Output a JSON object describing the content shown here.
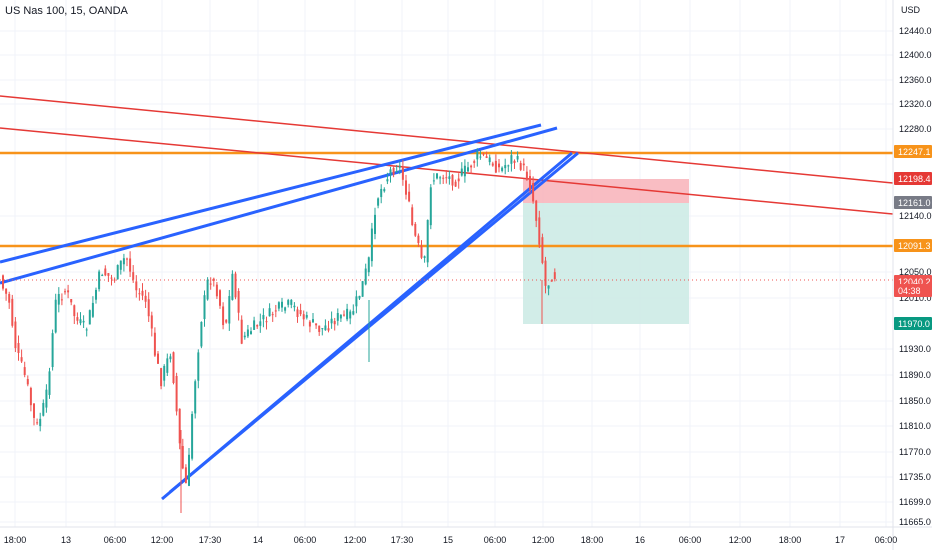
{
  "header": {
    "title": "US Nas 100, 15, OANDA"
  },
  "colors": {
    "up": "#26a69a",
    "down": "#ef5350",
    "resistance": "#f7931a",
    "trendline_red": "#e53935",
    "channel_blue": "#2962ff",
    "stop_zone": "#f8b2b8",
    "target_zone": "#cdebe6",
    "grid": "#f0f3fa"
  },
  "chart_data": {
    "type": "candlestick",
    "currency_label": "USD",
    "y_ticks": [
      "12440.0",
      "12400.0",
      "12360.0",
      "12320.0",
      "12280.0",
      "12140.0",
      "12050.0",
      "12010.0",
      "11930.0",
      "11890.0",
      "11850.0",
      "11810.0",
      "11770.0",
      "11735.0",
      "11699.0",
      "11665.0"
    ],
    "x_ticks": [
      "18:00",
      "13",
      "06:00",
      "12:00",
      "17:30",
      "14",
      "06:00",
      "12:00",
      "17:30",
      "15",
      "06:00",
      "12:00",
      "18:00",
      "16",
      "06:00",
      "12:00",
      "18:00",
      "17",
      "06:00"
    ],
    "price_badges": [
      {
        "label": "12247.1",
        "color": "#f7931a"
      },
      {
        "label": "12198.4",
        "color": "#e53935"
      },
      {
        "label": "12161.0",
        "color": "#787b86"
      },
      {
        "label": "12091.3",
        "color": "#f7931a"
      },
      {
        "label": "12040.2",
        "color": "#ef5350"
      },
      {
        "label": "04:38",
        "color": "#ef5350"
      },
      {
        "label": "11970.0",
        "color": "#089981"
      }
    ],
    "horizontal_levels": [
      12247.1,
      12091.3
    ],
    "position": {
      "entry": 12161.0,
      "stop": 12198.4,
      "target": 11970.0
    }
  }
}
